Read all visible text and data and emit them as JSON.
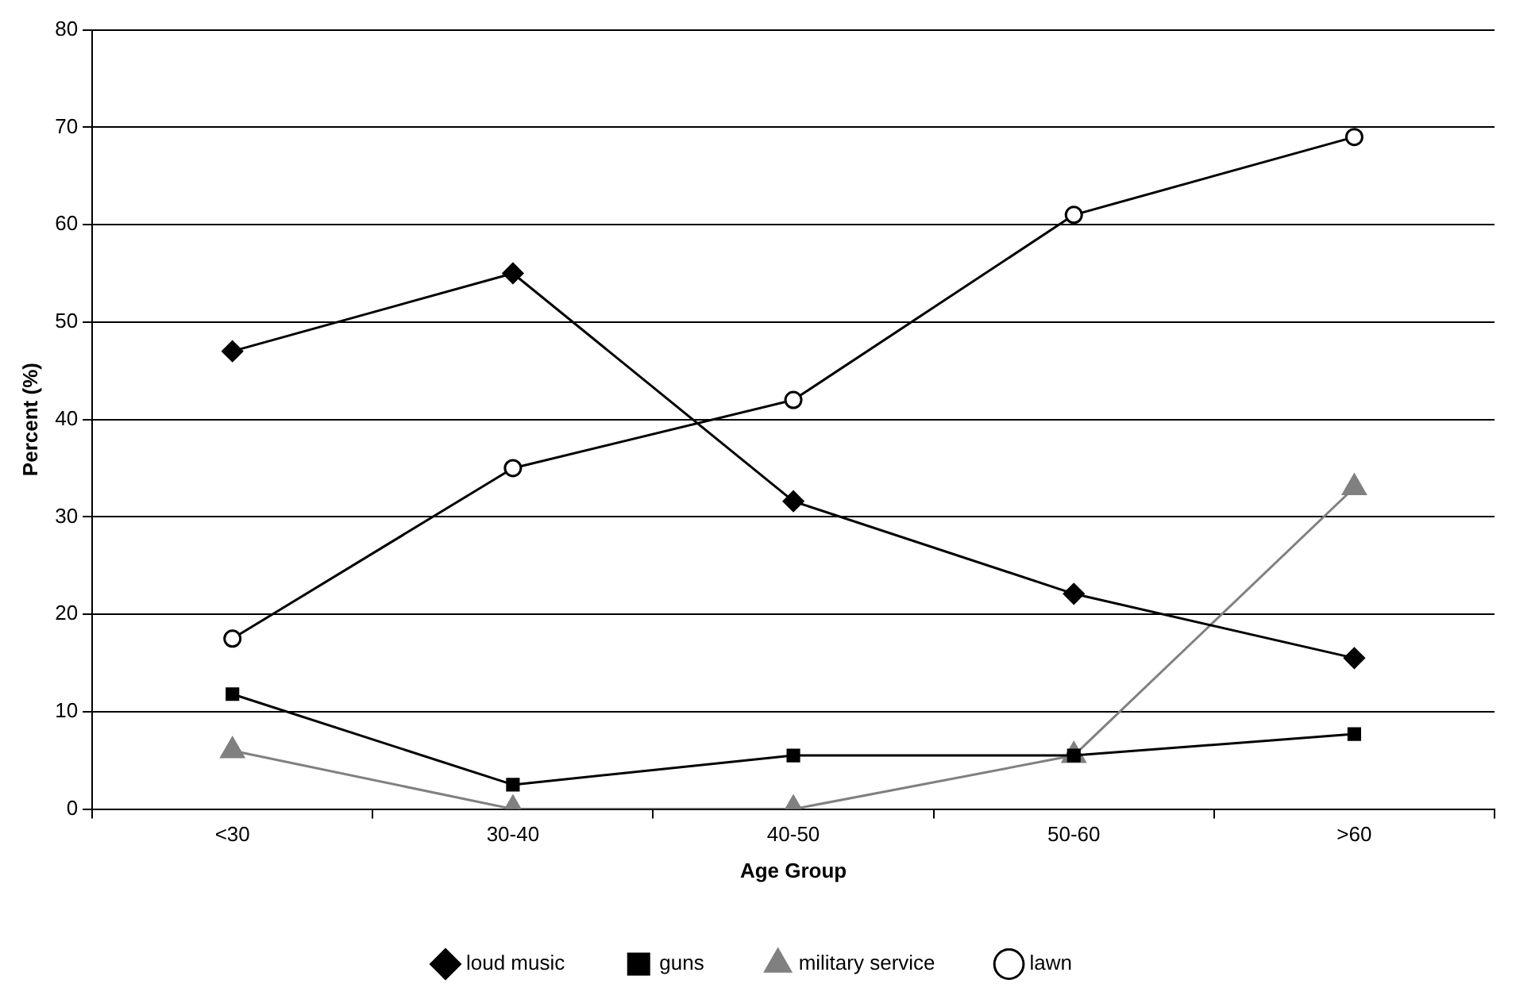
{
  "chart_data": {
    "type": "line",
    "xlabel": "Age Group",
    "ylabel": "Percent (%)",
    "categories": [
      "<30",
      "30-40",
      "40-50",
      "50-60",
      ">60"
    ],
    "series": [
      {
        "name": "loud music",
        "color": "#000000",
        "marker": "diamond",
        "values": [
          47,
          55,
          31.6,
          22.1,
          15.5
        ]
      },
      {
        "name": "guns",
        "color": "#000000",
        "marker": "square",
        "values": [
          11.8,
          2.5,
          5.5,
          5.5,
          7.7
        ]
      },
      {
        "name": "military service",
        "color": "#808080",
        "marker": "triangle",
        "values": [
          6,
          0,
          0,
          5.5,
          33
        ]
      },
      {
        "name": "lawn",
        "color": "#000000",
        "marker": "circle",
        "values": [
          17.5,
          35,
          42,
          61,
          69
        ]
      }
    ],
    "ylim": [
      0,
      80
    ],
    "yticks": [
      0,
      10,
      20,
      30,
      40,
      50,
      60,
      70,
      80
    ],
    "grid": "y",
    "legend": "bottom",
    "line_style": "solid"
  }
}
